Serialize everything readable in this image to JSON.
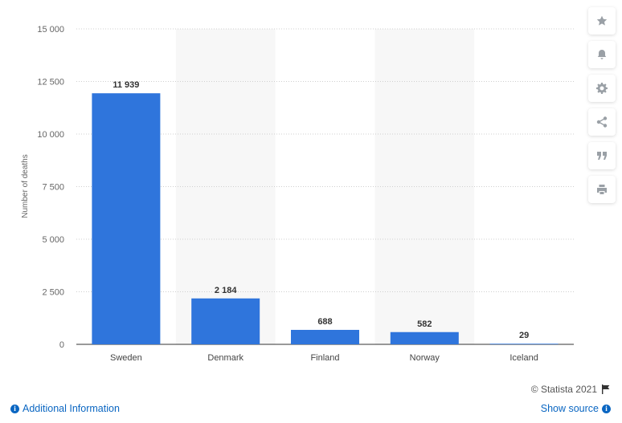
{
  "chart_data": {
    "type": "bar",
    "categories": [
      "Sweden",
      "Denmark",
      "Finland",
      "Norway",
      "Iceland"
    ],
    "values": [
      11939,
      2184,
      688,
      582,
      29
    ],
    "value_labels": [
      "11 939",
      "2 184",
      "688",
      "582",
      "29"
    ],
    "ylabel": "Number of deaths",
    "yticks": [
      0,
      2500,
      5000,
      7500,
      10000,
      12500,
      15000
    ],
    "ytick_labels": [
      "0",
      "2 500",
      "5 000",
      "7 500",
      "10 000",
      "12 500",
      "15 000"
    ],
    "ylim": [
      0,
      15000
    ],
    "grid": true,
    "bar_color": "#2f75dc"
  },
  "toolbar": {
    "buttons": [
      {
        "name": "favorite-star-icon",
        "icon": "star"
      },
      {
        "name": "notification-bell-icon",
        "icon": "bell"
      },
      {
        "name": "settings-gear-icon",
        "icon": "gear"
      },
      {
        "name": "share-icon",
        "icon": "share"
      },
      {
        "name": "cite-quote-icon",
        "icon": "quote"
      },
      {
        "name": "print-icon",
        "icon": "print"
      }
    ]
  },
  "credit": {
    "text": "© Statista 2021"
  },
  "footer": {
    "additional_info": "Additional Information",
    "show_source": "Show source"
  }
}
